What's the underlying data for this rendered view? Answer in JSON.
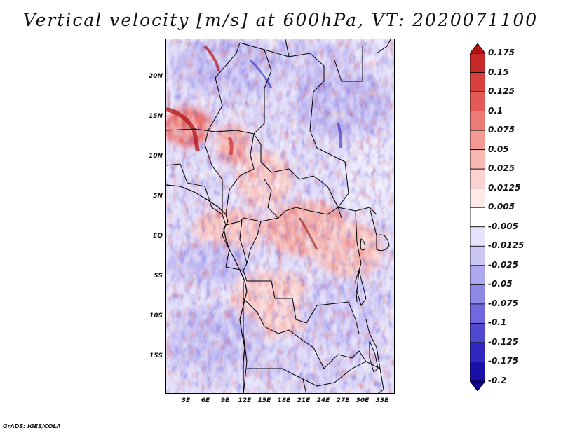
{
  "title": "Vertical velocity [m/s] at 600hPa, VT: 2020071100",
  "map": {
    "variable": "Vertical velocity",
    "units": "m/s",
    "level": "600hPa",
    "valid_time": "2020071100",
    "lat_labels": [
      "20N",
      "15N",
      "10N",
      "5N",
      "EQ",
      "5S",
      "10S",
      "15S"
    ],
    "lon_labels": [
      "3E",
      "6E",
      "9E",
      "12E",
      "15E",
      "18E",
      "21E",
      "24E",
      "27E",
      "30E",
      "33E"
    ]
  },
  "colorbar": {
    "levels": [
      "0.175",
      "0.15",
      "0.125",
      "0.1",
      "0.075",
      "0.05",
      "0.025",
      "0.0125",
      "0.005",
      "-0.005",
      "-0.0125",
      "-0.025",
      "-0.05",
      "-0.075",
      "-0.1",
      "-0.125",
      "-0.175",
      "-0.2"
    ],
    "colors": [
      "#b01515",
      "#c62a28",
      "#d8413e",
      "#e35b57",
      "#ec7a75",
      "#f39a95",
      "#f7b7b3",
      "#fad2cf",
      "#fde9e7",
      "#ffffff",
      "#e6e4fb",
      "#cbc7f5",
      "#aea9ef",
      "#8f89e6",
      "#7068dc",
      "#5048cf",
      "#3129bf",
      "#1a0fa6",
      "#0c008a"
    ]
  },
  "footer": "GrADS: IGES/COLA"
}
